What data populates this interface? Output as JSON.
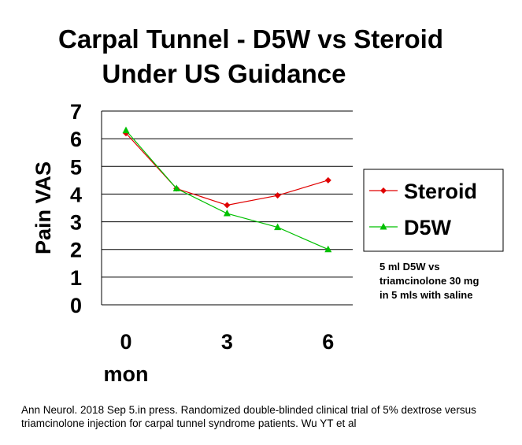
{
  "title": {
    "line1": "Carpal Tunnel - D5W vs Steroid",
    "line2": "Under US Guidance"
  },
  "note": {
    "line1": "5 ml D5W vs",
    "line2": "triamcinolone 30 mg",
    "line3": "in 5 mls with saline"
  },
  "source": "Ann Neurol. 2018 Sep 5.in press. Randomized double-blinded clinical trial of 5% dextrose versus triamcinolone injection for carpal tunnel syndrome patients. Wu YT et al",
  "chart_data": {
    "type": "line",
    "title": "Carpal Tunnel - D5W vs Steroid Under US Guidance",
    "ylabel": "Pain VAS",
    "xlabel": "mon",
    "ylim": [
      0,
      7
    ],
    "yticks": [
      0,
      1,
      2,
      3,
      4,
      5,
      6,
      7
    ],
    "xtick_labels": [
      "0",
      "3",
      "6"
    ],
    "xtick_positions": [
      0,
      3,
      6
    ],
    "grid": true,
    "legend": "right",
    "series": [
      {
        "name": "Steroid",
        "color": "#e00000",
        "marker": "diamond",
        "x": [
          0,
          1,
          2,
          3,
          4
        ],
        "values": [
          6.2,
          4.2,
          3.6,
          3.95,
          4.5
        ]
      },
      {
        "name": "D5W",
        "color": "#00c000",
        "marker": "triangle",
        "x": [
          0,
          1,
          2,
          3,
          4
        ],
        "values": [
          6.3,
          4.2,
          3.3,
          2.8,
          2.0
        ]
      }
    ]
  }
}
